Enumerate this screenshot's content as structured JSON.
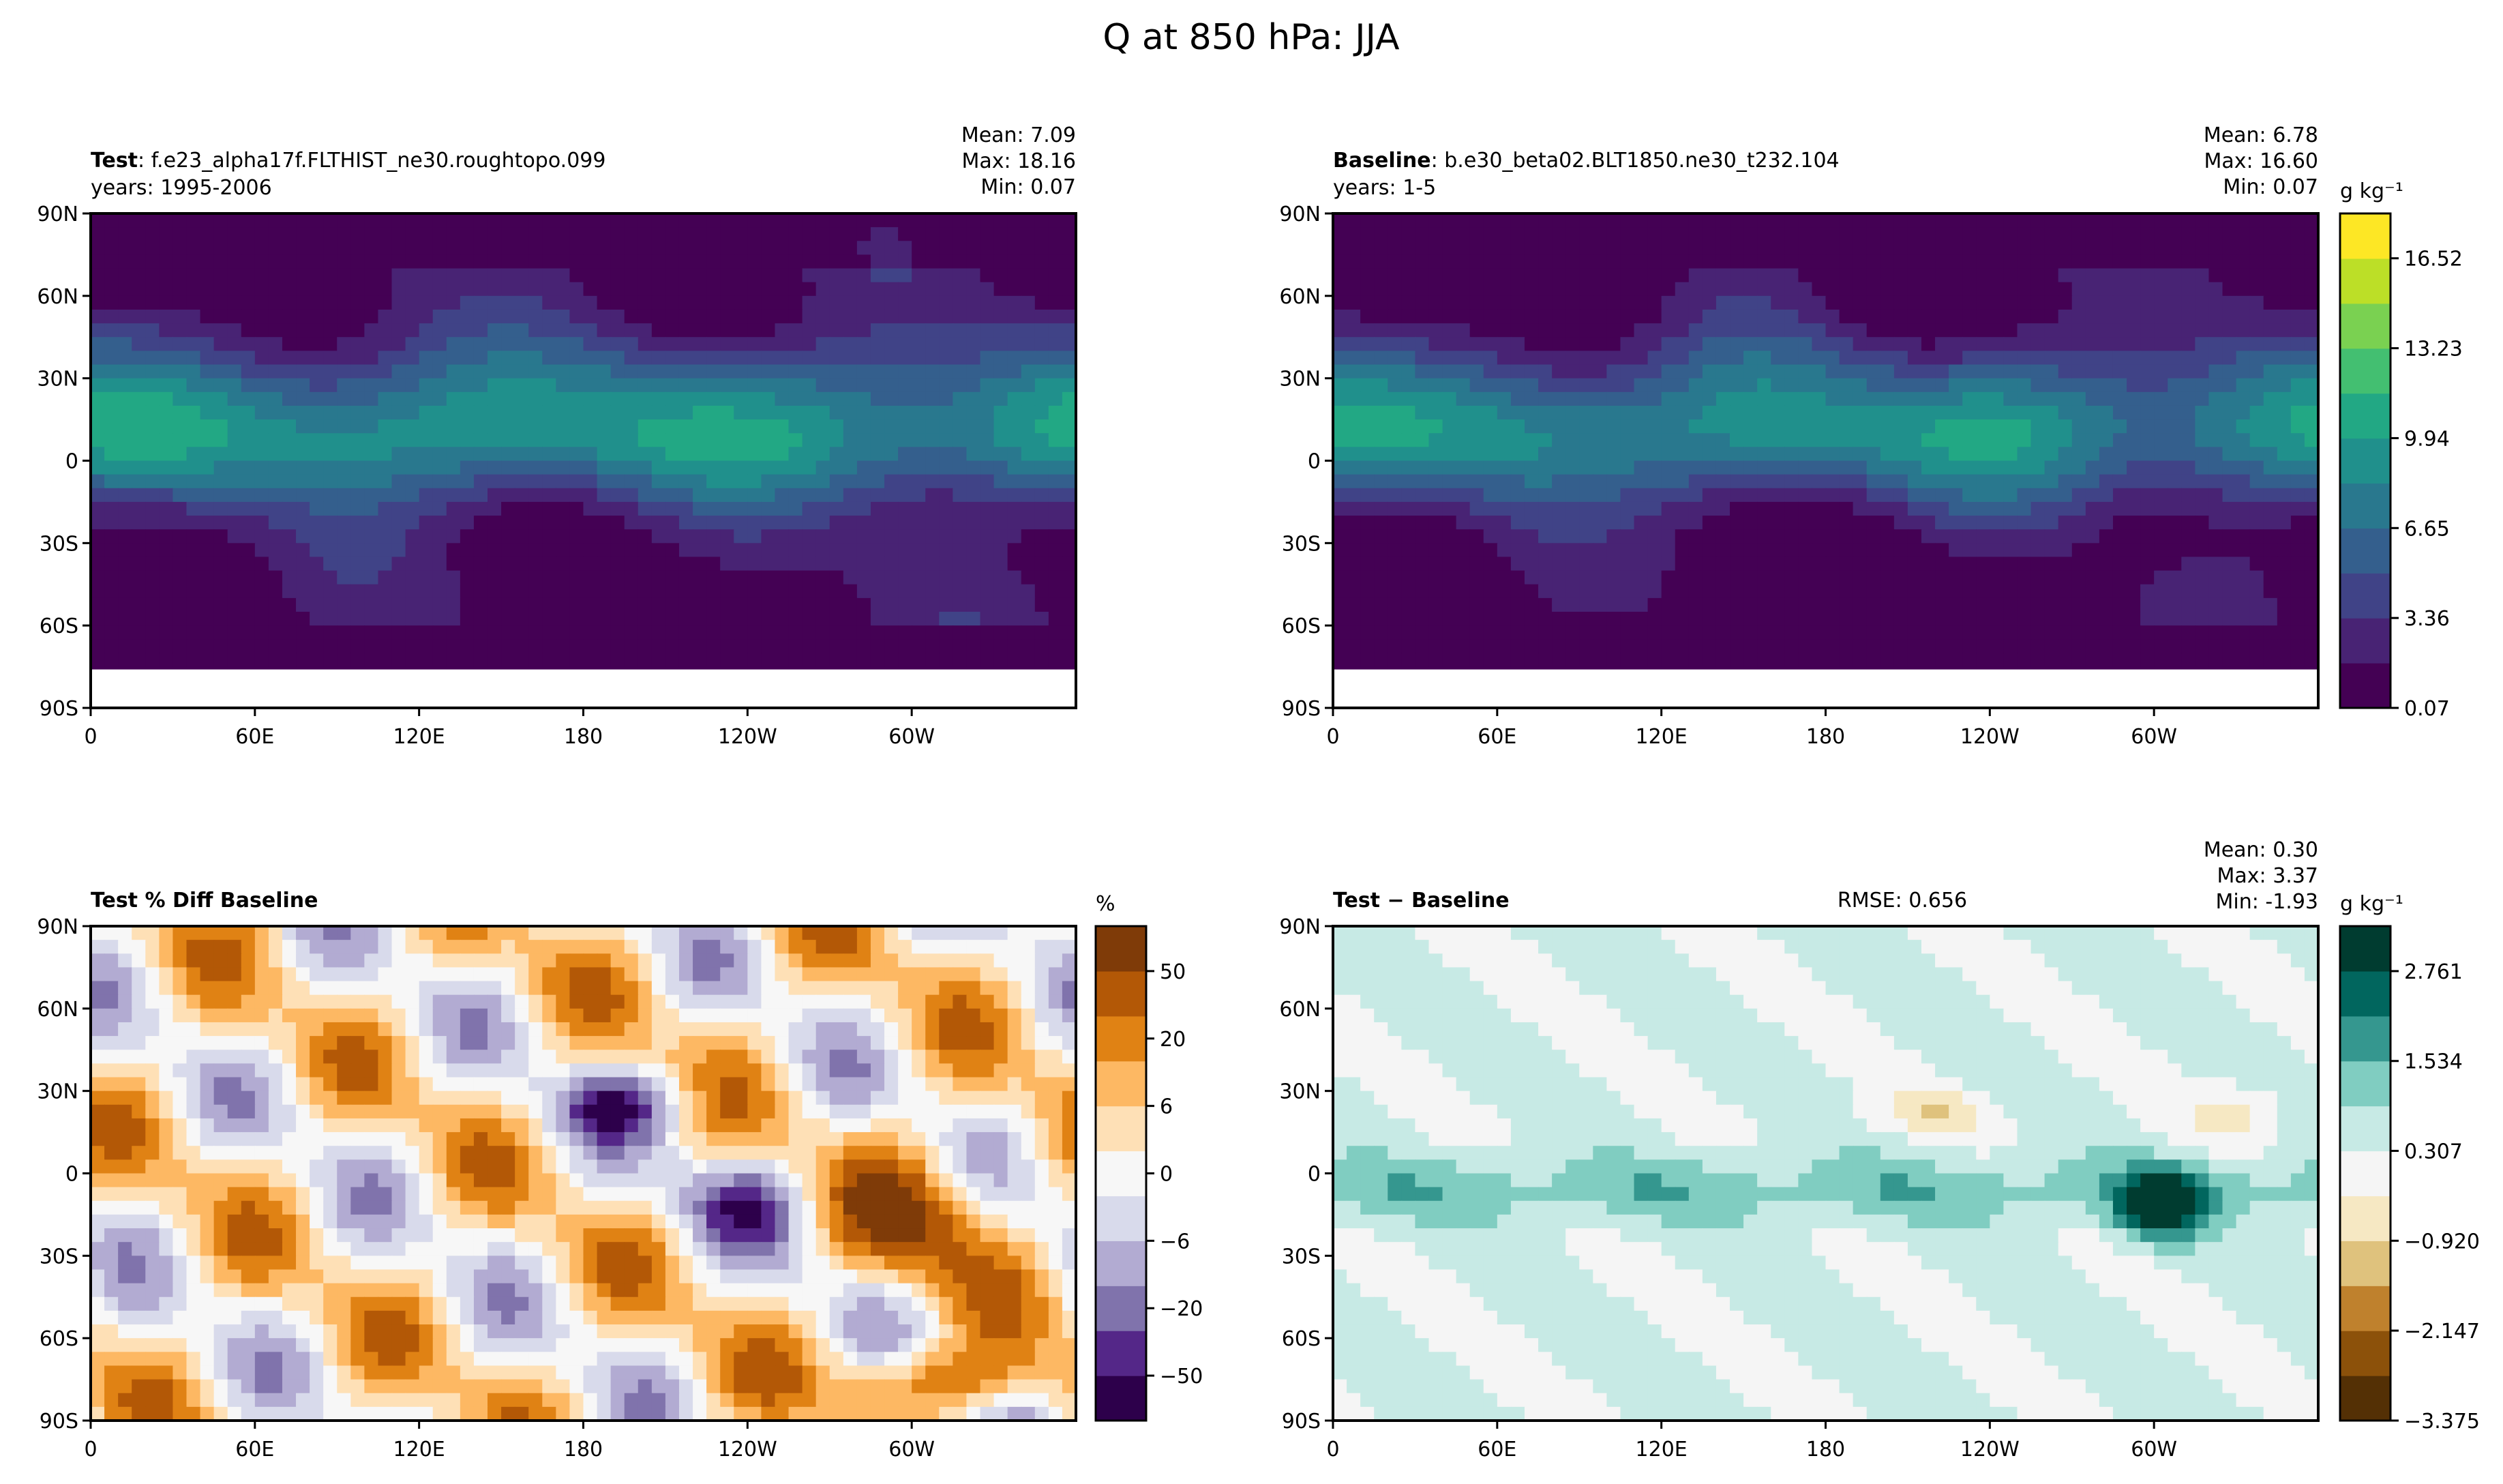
{
  "figure": {
    "suptitle": "Q at 850 hPa: JJA"
  },
  "palettes": {
    "viridis": [
      "#440154",
      "#482374",
      "#404387",
      "#345f8d",
      "#29788e",
      "#20908c",
      "#22a884",
      "#43bf71",
      "#7ad151",
      "#bcdf27",
      "#fde725"
    ],
    "puor": [
      "#2d004b",
      "#542788",
      "#8073ac",
      "#b2abd2",
      "#d8daeb",
      "#f7f7f7",
      "#fee0b6",
      "#fdb863",
      "#e08214",
      "#b35806",
      "#7f3b08"
    ],
    "brbg": [
      "#543005",
      "#8c510a",
      "#bf812d",
      "#dfc27d",
      "#f6e8c3",
      "#f5f5f5",
      "#c7eae5",
      "#80cdc1",
      "#35978f",
      "#01665e",
      "#003c30"
    ]
  },
  "axes": {
    "lat_ticks": [
      "90N",
      "60N",
      "30N",
      "0",
      "30S",
      "60S",
      "90S"
    ],
    "lon_ticks": [
      "0",
      "60E",
      "120E",
      "180",
      "120W",
      "60W"
    ]
  },
  "chart_data": [
    {
      "type": "heatmap",
      "panel": "test",
      "label_bold": "Test",
      "label": ": f.e23_alpha17f.FLTHIST_ne30.roughtopo.099",
      "years": "years: 1995-2006",
      "stats": {
        "mean": "Mean:  7.09",
        "max": "Max: 18.16",
        "min": "Min:  0.07"
      },
      "colormap": "viridis",
      "range": [
        0.07,
        18.16
      ],
      "xlim": [
        0,
        360
      ],
      "ylim": [
        -90,
        90
      ]
    },
    {
      "type": "heatmap",
      "panel": "baseline",
      "label_bold": "Baseline",
      "label": ": b.e30_beta02.BLT1850.ne30_t232.104",
      "years": "years: 1-5",
      "stats": {
        "mean": "Mean:  6.78",
        "max": "Max: 16.60",
        "min": "Min:  0.07"
      },
      "colormap": "viridis",
      "range": [
        0.07,
        16.6
      ],
      "xlim": [
        0,
        360
      ],
      "ylim": [
        -90,
        90
      ],
      "colorbar": {
        "units": "g kg⁻¹",
        "ticks": [
          "16.52",
          "13.23",
          "9.94",
          "6.65",
          "3.36",
          "0.07"
        ],
        "tick_values": [
          16.52,
          13.23,
          9.94,
          6.65,
          3.36,
          0.07
        ],
        "range": [
          0.07,
          18.16
        ]
      }
    },
    {
      "type": "heatmap",
      "panel": "pctdiff",
      "label_bold": "Test % Diff Baseline",
      "colormap": "puor",
      "xlim": [
        0,
        360
      ],
      "ylim": [
        -90,
        90
      ],
      "colorbar": {
        "units": "%",
        "ticks": [
          "50",
          "20",
          "6",
          "0",
          "−6",
          "−20",
          "−50"
        ],
        "tick_values": [
          50,
          20,
          6,
          0,
          -6,
          -20,
          -50
        ]
      }
    },
    {
      "type": "heatmap",
      "panel": "diff",
      "label_bold": "Test − Baseline",
      "rmse": "RMSE: 0.656",
      "stats": {
        "mean": "Mean:  0.30",
        "max": "Max:  3.37",
        "min": "Min: -1.93"
      },
      "colormap": "brbg",
      "range": [
        -3.375,
        3.375
      ],
      "xlim": [
        0,
        360
      ],
      "ylim": [
        -90,
        90
      ],
      "colorbar": {
        "units": "g kg⁻¹",
        "ticks": [
          "2.761",
          "1.534",
          "0.307",
          "−0.920",
          "−2.147",
          "−3.375"
        ],
        "tick_values": [
          2.761,
          1.534,
          0.307,
          -0.92,
          -2.147,
          -3.375
        ],
        "range": [
          -3.375,
          3.375
        ]
      }
    }
  ]
}
